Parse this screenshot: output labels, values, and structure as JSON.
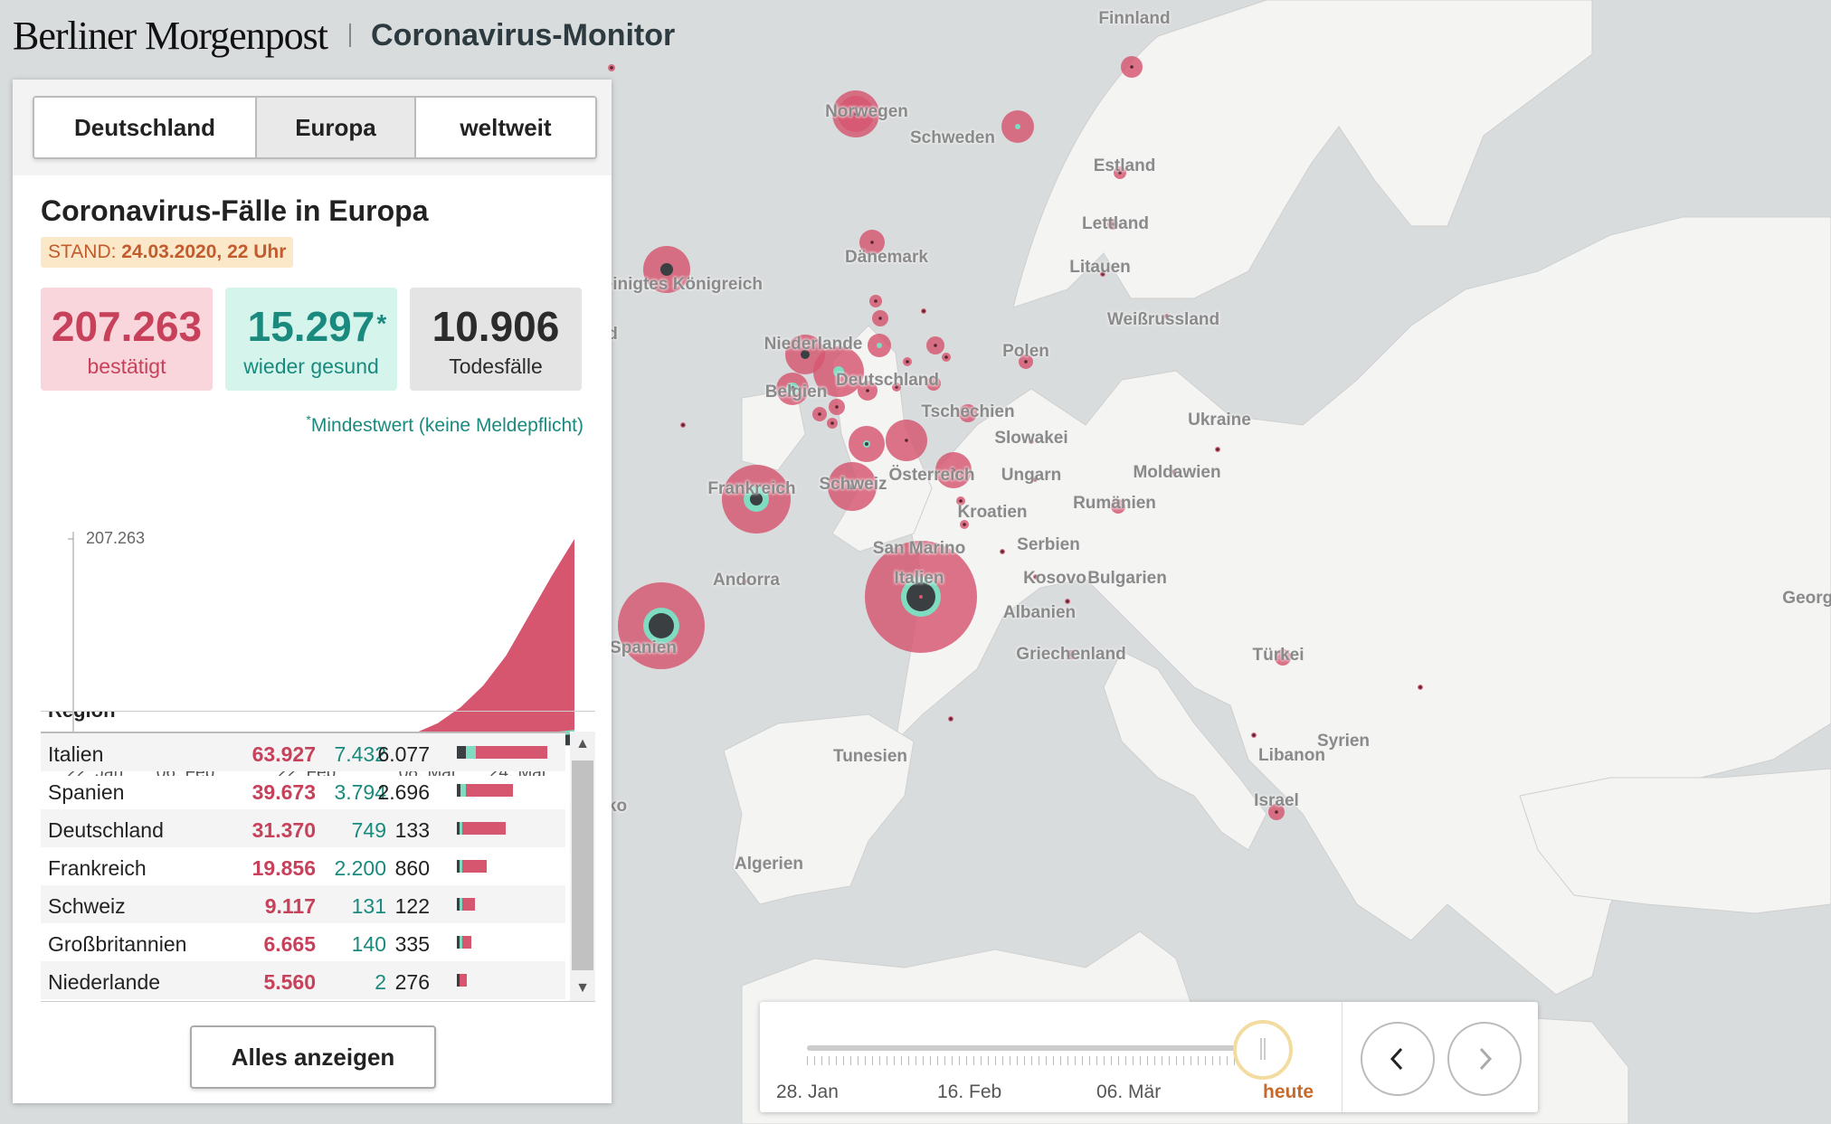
{
  "header": {
    "logo": "Berliner Morgenpost",
    "title": "Coronavirus-Monitor"
  },
  "tabs": [
    {
      "label": "Deutschland"
    },
    {
      "label": "Europa"
    },
    {
      "label": "weltweit"
    }
  ],
  "active_tab": "Europa",
  "panel": {
    "title": "Coronavirus-Fälle in Europa",
    "stand_label": "STAND:",
    "stand_value": "24.03.2020, 22 Uhr",
    "stats": {
      "confirmed": {
        "value": "207.263",
        "label": "bestätigt"
      },
      "recovered": {
        "value": "15.297",
        "star": "*",
        "label": "wieder gesund"
      },
      "deaths": {
        "value": "10.906",
        "label": "Todesfälle"
      }
    },
    "footnote_star": "*",
    "footnote": "Mindestwert (keine Meldepflicht)"
  },
  "chart_data": {
    "type": "area",
    "title": "",
    "x_ticks": [
      "22. Jan",
      "06. Feb",
      "22. Feb",
      "08. Mär",
      "24. Mär"
    ],
    "y_ticks": [
      "0",
      "207.263"
    ],
    "ylim": [
      0,
      207263
    ],
    "series": [
      {
        "name": "bestätigt",
        "color": "#d6566f",
        "values": [
          0,
          0,
          0,
          0,
          0,
          0,
          0,
          0,
          0,
          10,
          50,
          200,
          900,
          2500,
          6000,
          12000,
          22000,
          38000,
          60000,
          90000,
          130000,
          170000,
          207263
        ]
      },
      {
        "name": "wieder gesund",
        "color": "#7fdcc1",
        "values": [
          0,
          0,
          0,
          0,
          0,
          0,
          0,
          0,
          0,
          0,
          5,
          20,
          60,
          120,
          250,
          500,
          900,
          1800,
          3500,
          6500,
          10000,
          13000,
          15297
        ]
      },
      {
        "name": "Todesfälle",
        "color": "#3a3f42",
        "values": [
          0,
          0,
          0,
          0,
          0,
          0,
          0,
          0,
          0,
          0,
          0,
          5,
          20,
          50,
          150,
          400,
          900,
          1800,
          3200,
          5200,
          7500,
          9300,
          10906
        ]
      }
    ]
  },
  "table": {
    "header": "Region",
    "rows": [
      {
        "name": "Italien",
        "confirmed": "63.927",
        "recovered": "7.432",
        "deaths": "6.077"
      },
      {
        "name": "Spanien",
        "confirmed": "39.673",
        "recovered": "3.794",
        "deaths": "2.696"
      },
      {
        "name": "Deutschland",
        "confirmed": "31.370",
        "recovered": "749",
        "deaths": "133"
      },
      {
        "name": "Frankreich",
        "confirmed": "19.856",
        "recovered": "2.200",
        "deaths": "860"
      },
      {
        "name": "Schweiz",
        "confirmed": "9.117",
        "recovered": "131",
        "deaths": "122"
      },
      {
        "name": "Großbritannien",
        "confirmed": "6.665",
        "recovered": "140",
        "deaths": "335"
      },
      {
        "name": "Niederlande",
        "confirmed": "5.560",
        "recovered": "2",
        "deaths": "276"
      }
    ],
    "bar_values": [
      {
        "confirmed": 63927,
        "recovered": 7432,
        "deaths": 6077
      },
      {
        "confirmed": 39673,
        "recovered": 3794,
        "deaths": 2696
      },
      {
        "confirmed": 31370,
        "recovered": 749,
        "deaths": 133
      },
      {
        "confirmed": 19856,
        "recovered": 2200,
        "deaths": 860
      },
      {
        "confirmed": 9117,
        "recovered": 131,
        "deaths": 122
      },
      {
        "confirmed": 6665,
        "recovered": 140,
        "deaths": 335
      },
      {
        "confirmed": 5560,
        "recovered": 2,
        "deaths": 276
      }
    ]
  },
  "show_all_button": "Alles anzeigen",
  "timeline": {
    "labels": [
      "28. Jan",
      "16. Feb",
      "06. Mär",
      "heute"
    ],
    "position": 1.0
  },
  "colors": {
    "confirmed": "#d6566f",
    "recovered": "#7fdcc1",
    "deaths": "#3a3f42",
    "accent_today": "#c66a2c"
  },
  "map": {
    "labels": [
      "Finnland",
      "Norwegen",
      "Schweden",
      "Estland",
      "Lettland",
      "Dänemark",
      "Litauen",
      "Vereinigtes Königreich",
      "Irland",
      "Weißrussland",
      "Niederlande",
      "Polen",
      "Deutschland",
      "Belgien",
      "Tschechien",
      "Ukraine",
      "Slowakei",
      "Österreich",
      "Ungarn",
      "Moldawien",
      "Frankreich",
      "Schweiz",
      "Rumänien",
      "Kroatien",
      "San Marino",
      "Serbien",
      "Andorra",
      "Kosovo",
      "Bulgarien",
      "Italien",
      "Albanien",
      "Spanien",
      "Griechenland",
      "Türkei",
      "Tunesien",
      "Syrien",
      "Libanon",
      "Israel",
      "Marokko",
      "Algerien",
      "Georgien"
    ]
  }
}
